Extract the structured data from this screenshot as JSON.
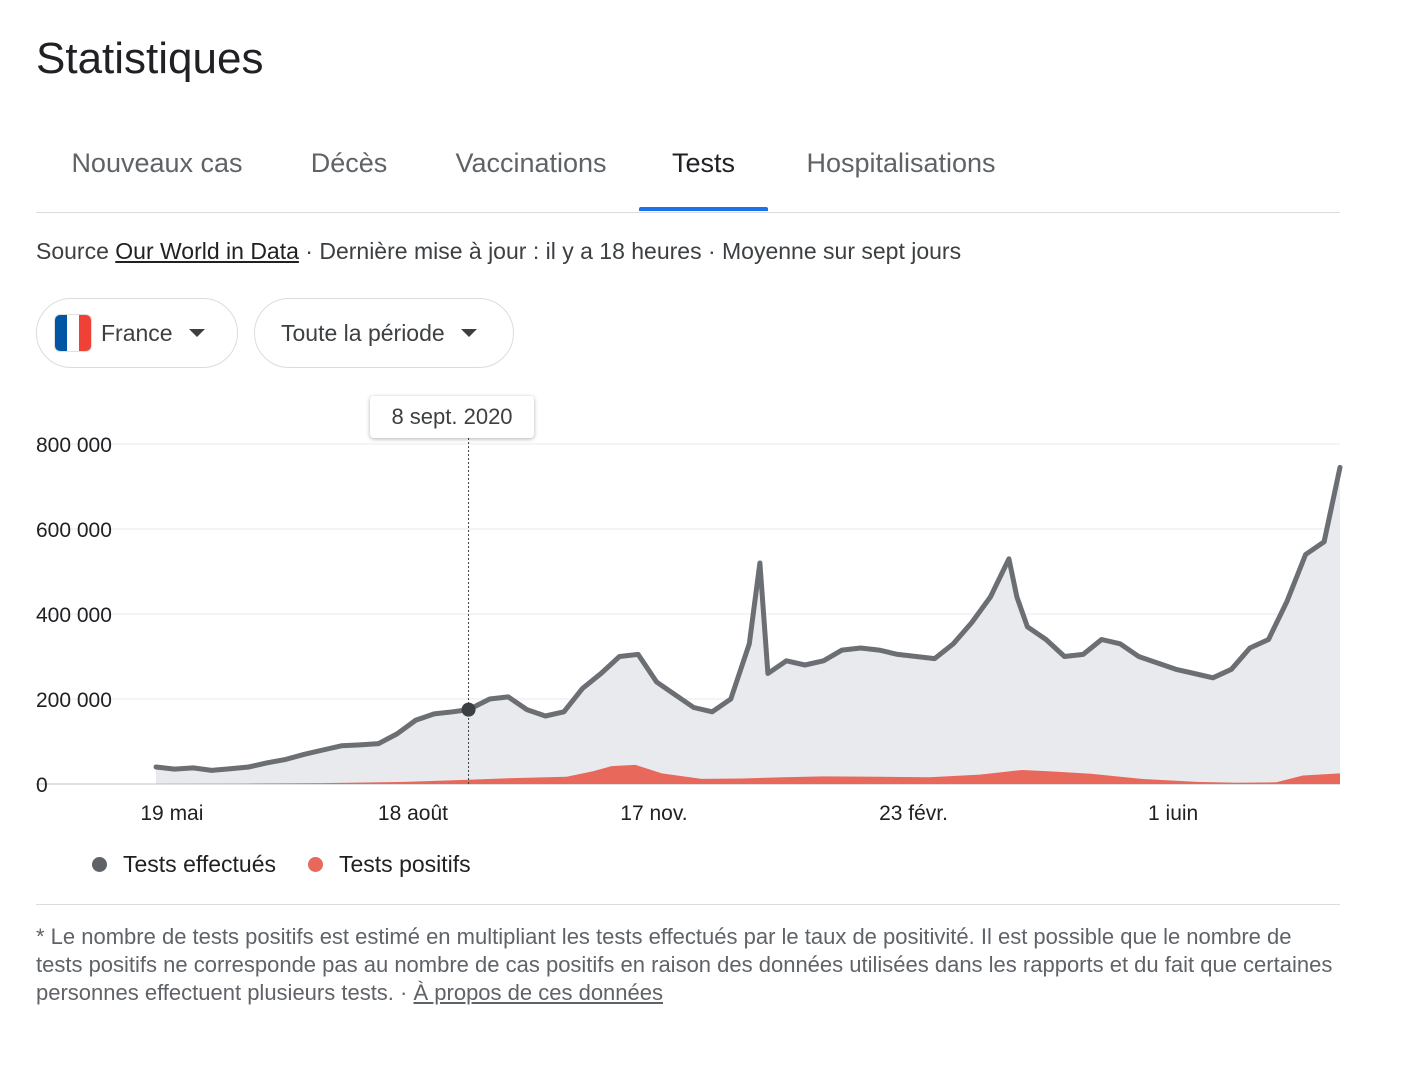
{
  "page": {
    "title": "Statistiques"
  },
  "tabs": [
    {
      "label": "Nouveaux cas",
      "active": false
    },
    {
      "label": "Décès",
      "active": false
    },
    {
      "label": "Vaccinations",
      "active": false
    },
    {
      "label": "Tests",
      "active": true
    },
    {
      "label": "Hospitalisations",
      "active": false
    }
  ],
  "source": {
    "prefix": "Source ",
    "link_text": "Our World in Data",
    "updated": " · Dernière mise à jour : il y a 18 heures · Moyenne sur sept jours"
  },
  "filters": {
    "country": {
      "label": "France",
      "flag_colors": [
        "#0055a4",
        "#ffffff",
        "#ef4135"
      ]
    },
    "period": {
      "label": "Toute la période"
    }
  },
  "tooltip": {
    "date": "8 sept. 2020"
  },
  "legend": [
    {
      "label": "Tests effectués",
      "color": "#5f6368"
    },
    {
      "label": "Tests positifs",
      "color": "#e8685c"
    }
  ],
  "footnote": {
    "text": "* Le nombre de tests positifs est estimé en multipliant les tests effectués par le taux de positivité. Il est possible que le nombre de tests positifs ne corresponde pas au nombre de cas positifs en raison des données utilisées dans les rapports et du fait que certaines personnes effectuent plusieurs tests.",
    "separator": " · ",
    "link_text": "À propos de ces données"
  },
  "chart_data": {
    "type": "area",
    "x_start": "2020-05-13",
    "x_end": "2021-08-03",
    "ylim": [
      0,
      800000
    ],
    "y_ticks": [
      0,
      200000,
      400000,
      600000,
      800000
    ],
    "y_tick_labels": [
      "0",
      "200 000",
      "400 000",
      "600 000",
      "800 000"
    ],
    "x_ticks": [
      {
        "date": "2020-05-19",
        "label": "19 mai"
      },
      {
        "date": "2020-08-18",
        "label": "18 août"
      },
      {
        "date": "2020-11-17",
        "label": "17 nov."
      },
      {
        "date": "2021-02-23",
        "label": "23 févr."
      },
      {
        "date": "2021-06-01",
        "label": "1 juin"
      }
    ],
    "grid": true,
    "legend_position": "bottom-left",
    "highlight": {
      "date": "2020-09-08",
      "value": 175000
    },
    "series": [
      {
        "name": "Tests effectués",
        "color": "#6b6e72",
        "x": [
          "2020-05-13",
          "2020-05-20",
          "2020-05-27",
          "2020-06-03",
          "2020-06-10",
          "2020-06-17",
          "2020-06-24",
          "2020-07-01",
          "2020-07-08",
          "2020-07-15",
          "2020-07-22",
          "2020-07-29",
          "2020-08-05",
          "2020-08-12",
          "2020-08-19",
          "2020-08-26",
          "2020-09-02",
          "2020-09-08",
          "2020-09-16",
          "2020-09-23",
          "2020-09-30",
          "2020-10-07",
          "2020-10-14",
          "2020-10-21",
          "2020-10-28",
          "2020-11-04",
          "2020-11-11",
          "2020-11-18",
          "2020-11-25",
          "2020-12-02",
          "2020-12-09",
          "2020-12-16",
          "2020-12-23",
          "2020-12-27",
          "2020-12-30",
          "2021-01-06",
          "2021-01-13",
          "2021-01-20",
          "2021-01-27",
          "2021-02-03",
          "2021-02-10",
          "2021-02-17",
          "2021-02-24",
          "2021-03-03",
          "2021-03-10",
          "2021-03-17",
          "2021-03-24",
          "2021-03-31",
          "2021-04-03",
          "2021-04-07",
          "2021-04-14",
          "2021-04-21",
          "2021-04-28",
          "2021-05-05",
          "2021-05-12",
          "2021-05-19",
          "2021-05-26",
          "2021-06-02",
          "2021-06-09",
          "2021-06-16",
          "2021-06-23",
          "2021-06-30",
          "2021-07-07",
          "2021-07-14",
          "2021-07-21",
          "2021-07-28",
          "2021-08-03"
        ],
        "values": [
          40000,
          35000,
          38000,
          32000,
          36000,
          40000,
          50000,
          58000,
          70000,
          80000,
          90000,
          92000,
          95000,
          118000,
          150000,
          165000,
          170000,
          175000,
          200000,
          205000,
          175000,
          160000,
          170000,
          225000,
          260000,
          300000,
          305000,
          240000,
          210000,
          180000,
          170000,
          200000,
          330000,
          520000,
          260000,
          290000,
          280000,
          290000,
          315000,
          320000,
          315000,
          305000,
          300000,
          295000,
          330000,
          380000,
          440000,
          530000,
          440000,
          370000,
          340000,
          300000,
          305000,
          340000,
          330000,
          300000,
          285000,
          270000,
          260000,
          250000,
          270000,
          320000,
          340000,
          430000,
          540000,
          570000,
          745000
        ]
      },
      {
        "name": "Tests positifs",
        "color": "#e8685c",
        "x": [
          "2020-05-13",
          "2020-06-15",
          "2020-07-15",
          "2020-08-15",
          "2020-09-08",
          "2020-09-25",
          "2020-10-15",
          "2020-10-25",
          "2020-11-01",
          "2020-11-10",
          "2020-11-20",
          "2020-12-05",
          "2020-12-20",
          "2021-01-05",
          "2021-01-20",
          "2021-02-10",
          "2021-03-01",
          "2021-03-20",
          "2021-04-05",
          "2021-04-15",
          "2021-05-01",
          "2021-05-20",
          "2021-06-10",
          "2021-06-25",
          "2021-07-10",
          "2021-07-20",
          "2021-08-03"
        ],
        "values": [
          500,
          1000,
          2000,
          5000,
          10000,
          14000,
          17000,
          30000,
          42000,
          45000,
          25000,
          12000,
          13000,
          16000,
          18000,
          17000,
          16000,
          22000,
          33000,
          30000,
          24000,
          12000,
          5000,
          3000,
          4000,
          20000,
          25000
        ]
      }
    ]
  }
}
